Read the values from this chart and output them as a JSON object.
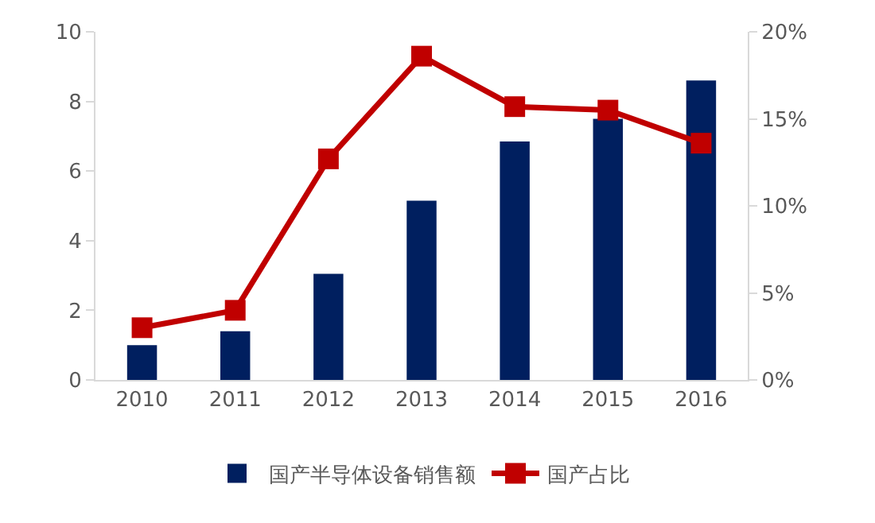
{
  "chart_data": {
    "type": "bar",
    "categories": [
      "2010",
      "2011",
      "2012",
      "2013",
      "2014",
      "2015",
      "2016"
    ],
    "series": [
      {
        "name": "国产半导体设备销售额",
        "color": "#001f5f",
        "values": [
          1.0,
          1.4,
          3.05,
          5.15,
          6.85,
          7.5,
          8.6
        ]
      },
      {
        "name": "国产占比",
        "type": "line",
        "axis": "y2",
        "color": "#c00000",
        "values": [
          3.0,
          4.0,
          12.7,
          18.6,
          15.7,
          15.5,
          13.6
        ]
      }
    ],
    "ylim": [
      0,
      10
    ],
    "yticks": [
      0,
      2,
      4,
      6,
      8,
      10
    ],
    "y2lim": [
      0,
      20
    ],
    "y2ticks": [
      {
        "value": 0,
        "label": "0%"
      },
      {
        "value": 5,
        "label": "5%"
      },
      {
        "value": 10,
        "label": "10%"
      },
      {
        "value": 15,
        "label": "15%"
      },
      {
        "value": 20,
        "label": "20%"
      }
    ],
    "legend": "bottom",
    "grid": false,
    "marker": "square",
    "line_style": "solid"
  }
}
